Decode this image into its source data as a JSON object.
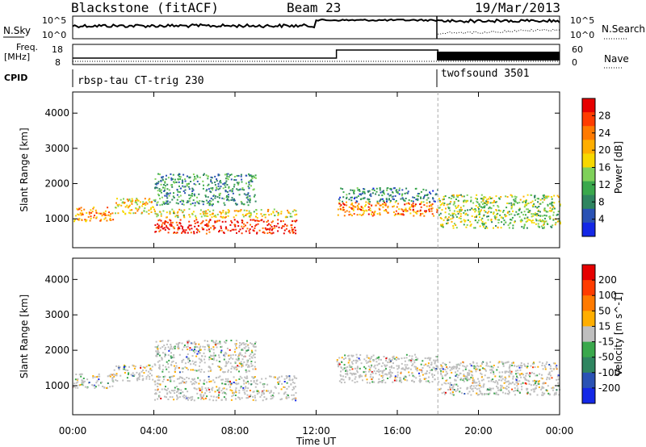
{
  "header": {
    "station": "Blackstone (fitACF)",
    "beam": "Beam 23",
    "date": "19/Mar/2013"
  },
  "top_panel": {
    "nsky_label": "N.Sky",
    "nsearch_label": "N.Search",
    "freq_label": "Freq.",
    "freq_unit": "[MHz]",
    "nave_label": "Nave",
    "cpid_label": "CPID",
    "left_ticks": [
      "10^5",
      "10^0"
    ],
    "right_ticks": [
      "10^5",
      "10^0"
    ],
    "freq_ticks": [
      "18",
      "8"
    ],
    "nave_ticks": [
      "60",
      "0"
    ],
    "cpid_modes": [
      {
        "label": "rbsp-tau CT-trig 230",
        "start_hour": 0,
        "end_hour": 18
      },
      {
        "label": "twofsound 3501",
        "start_hour": 18,
        "end_hour": 24
      }
    ]
  },
  "chart_data": [
    {
      "type": "heatmap",
      "parameter": "Power",
      "ylabel": "Slant Range [km]",
      "xlabel": "Time UT",
      "x_ticks": [
        "00:00",
        "04:00",
        "08:00",
        "12:00",
        "16:00",
        "20:00",
        "00:00"
      ],
      "xlim_hours": [
        0,
        24
      ],
      "y_ticks": [
        1000,
        2000,
        3000,
        4000
      ],
      "ylim_km": [
        180,
        4600
      ],
      "colorbar": {
        "label": "Power [dB]",
        "ticks": [
          "4",
          "8",
          "12",
          "16",
          "20",
          "24",
          "28"
        ],
        "colors": [
          "#1428e6",
          "#2a52b4",
          "#2f8560",
          "#3aa84c",
          "#7fd15a",
          "#f7d800",
          "#ffae00",
          "#ff7a00",
          "#ff3c00",
          "#e60000"
        ]
      },
      "scatter_regions": [
        {
          "t0": 0.0,
          "t1": 2.0,
          "r0": 950,
          "r1": 1350,
          "level": 0.7
        },
        {
          "t0": 2.0,
          "t1": 4.0,
          "r0": 1150,
          "r1": 1600,
          "level": 0.6
        },
        {
          "t0": 4.0,
          "t1": 11.0,
          "r0": 600,
          "r1": 1000,
          "level": 0.92
        },
        {
          "t0": 4.0,
          "t1": 11.0,
          "r0": 1050,
          "r1": 1300,
          "level": 0.55
        },
        {
          "t0": 4.0,
          "t1": 9.0,
          "r0": 1400,
          "r1": 2300,
          "level": 0.3
        },
        {
          "t0": 13.0,
          "t1": 18.0,
          "r0": 1100,
          "r1": 1500,
          "level": 0.75
        },
        {
          "t0": 13.0,
          "t1": 18.0,
          "r0": 1500,
          "r1": 1900,
          "level": 0.25
        },
        {
          "t0": 18.0,
          "t1": 24.0,
          "r0": 750,
          "r1": 1700,
          "level": 0.45
        }
      ]
    },
    {
      "type": "heatmap",
      "parameter": "Velocity",
      "ylabel": "Slant Range [km]",
      "xlabel": "Time UT",
      "x_ticks": [
        "00:00",
        "04:00",
        "08:00",
        "12:00",
        "16:00",
        "20:00",
        "00:00"
      ],
      "xlim_hours": [
        0,
        24
      ],
      "y_ticks": [
        1000,
        2000,
        3000,
        4000
      ],
      "ylim_km": [
        180,
        4600
      ],
      "colorbar": {
        "label": "Velocity [m s^-1]",
        "ticks": [
          "200",
          "100",
          "50",
          "15",
          "-15",
          "-50",
          "-100",
          "-200"
        ],
        "colors": [
          "#1428e6",
          "#2a52b4",
          "#2f8560",
          "#3aa84c",
          "#bfbfbf",
          "#ffae00",
          "#ff7a00",
          "#ff3c00",
          "#e60000"
        ]
      },
      "scatter_regions": [
        {
          "t0": 0.0,
          "t1": 2.0,
          "r0": 950,
          "r1": 1350,
          "level": 0.5
        },
        {
          "t0": 2.0,
          "t1": 4.0,
          "r0": 1150,
          "r1": 1600,
          "level": 0.5
        },
        {
          "t0": 4.0,
          "t1": 11.0,
          "r0": 600,
          "r1": 1000,
          "level": 0.5
        },
        {
          "t0": 4.0,
          "t1": 11.0,
          "r0": 1050,
          "r1": 1300,
          "level": 0.5
        },
        {
          "t0": 4.0,
          "t1": 9.0,
          "r0": 1400,
          "r1": 2300,
          "level": 0.5
        },
        {
          "t0": 13.0,
          "t1": 18.0,
          "r0": 1100,
          "r1": 1500,
          "level": 0.5
        },
        {
          "t0": 13.0,
          "t1": 18.0,
          "r0": 1500,
          "r1": 1900,
          "level": 0.5
        },
        {
          "t0": 18.0,
          "t1": 24.0,
          "r0": 750,
          "r1": 1700,
          "level": 0.5
        }
      ]
    }
  ]
}
